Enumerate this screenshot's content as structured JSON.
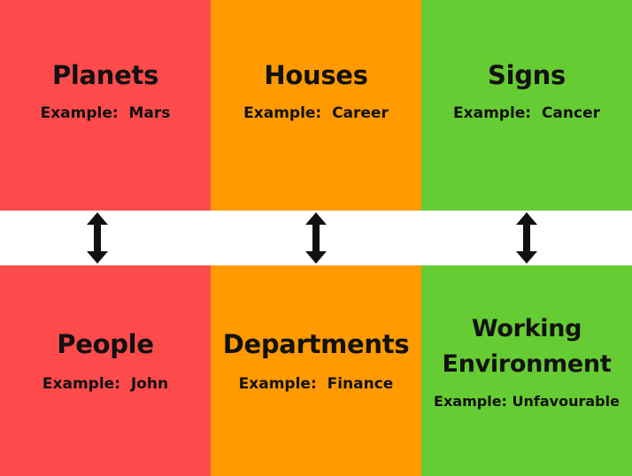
{
  "colors": {
    "red": "#ff4b4b",
    "orange": "#ff9a00",
    "green": "#66cc33",
    "text": "#111111",
    "arrow": "#111111"
  },
  "top_row": [
    {
      "title": "Planets",
      "example": "Example:  Mars",
      "color": "#ff4b4b"
    },
    {
      "title": "Houses",
      "example": "Example:  Career",
      "color": "#ff9a00"
    },
    {
      "title": "Signs",
      "example": "Example:  Cancer",
      "color": "#66cc33"
    }
  ],
  "bottom_row": [
    {
      "title": "People",
      "example": "Example:  John",
      "color": "#ff4b4b"
    },
    {
      "title": "Departments",
      "example": "Example:  Finance",
      "color": "#ff9a00"
    },
    {
      "title_line1": "Working",
      "title_line2": "Environment",
      "example": "Example: Unfavourable",
      "color": "#66cc33"
    }
  ],
  "arrows": [
    {
      "icon": "double-arrow-vertical-icon"
    },
    {
      "icon": "double-arrow-vertical-icon"
    },
    {
      "icon": "double-arrow-vertical-icon"
    }
  ]
}
